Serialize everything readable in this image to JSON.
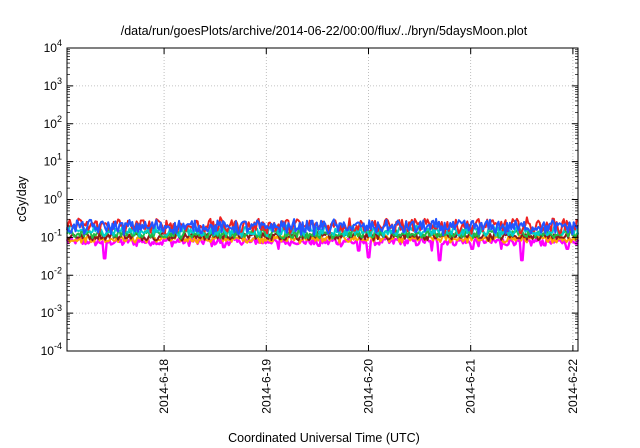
{
  "chart_data": {
    "type": "line",
    "title": "/data/run/goesPlots/archive/2014-06-22/00:00/flux/../bryn/5daysMoon.plot",
    "xlabel": "Coordinated Universal Time (UTC)",
    "ylabel": "cGy/day",
    "yscale": "log",
    "ylim": [
      0.0001,
      10000
    ],
    "y_ticks": [
      {
        "exp": -4,
        "label": "10",
        "sup": "-4"
      },
      {
        "exp": -3,
        "label": "10",
        "sup": "-3"
      },
      {
        "exp": -2,
        "label": "10",
        "sup": "-2"
      },
      {
        "exp": -1,
        "label": "10",
        "sup": "-1"
      },
      {
        "exp": 0,
        "label": "10",
        "sup": "0"
      },
      {
        "exp": 1,
        "label": "10",
        "sup": "1"
      },
      {
        "exp": 2,
        "label": "10",
        "sup": "2"
      },
      {
        "exp": 3,
        "label": "10",
        "sup": "3"
      },
      {
        "exp": 4,
        "label": "10",
        "sup": "4"
      }
    ],
    "x_range_days": [
      17.05,
      22.05
    ],
    "x_ticks": [
      {
        "day": 18,
        "label": "2014-6-18"
      },
      {
        "day": 19,
        "label": "2014-6-19"
      },
      {
        "day": 20,
        "label": "2014-6-20"
      },
      {
        "day": 21,
        "label": "2014-6-21"
      },
      {
        "day": 22,
        "label": "2014-6-22"
      }
    ],
    "grid": true,
    "series": [
      {
        "name": "magenta",
        "color": "#ff00ff",
        "base": 0.078,
        "noise": 0.1,
        "dips": [
          [
            17.42,
            0.028
          ],
          [
            18.58,
            0.055
          ],
          [
            19.12,
            0.05
          ],
          [
            19.52,
            0.06
          ],
          [
            19.9,
            0.045
          ],
          [
            20.0,
            0.03
          ],
          [
            20.62,
            0.045
          ],
          [
            20.7,
            0.025
          ],
          [
            21.02,
            0.05
          ],
          [
            21.3,
            0.05
          ],
          [
            21.5,
            0.025
          ],
          [
            21.95,
            0.05
          ]
        ]
      },
      {
        "name": "orange",
        "color": "#ffa500",
        "base": 0.092,
        "noise": 0.09,
        "dips": []
      },
      {
        "name": "dark-red",
        "color": "#8b1a1a",
        "base": 0.108,
        "noise": 0.09,
        "dips": []
      },
      {
        "name": "green",
        "color": "#22bb44",
        "base": 0.125,
        "noise": 0.1,
        "dips": []
      },
      {
        "name": "cyan",
        "color": "#00cccc",
        "base": 0.15,
        "noise": 0.12,
        "dips": []
      },
      {
        "name": "red",
        "color": "#ee2222",
        "base": 0.205,
        "noise": 0.16,
        "dips": []
      },
      {
        "name": "blue",
        "color": "#2255ff",
        "base": 0.19,
        "noise": 0.16,
        "dips": []
      }
    ]
  }
}
